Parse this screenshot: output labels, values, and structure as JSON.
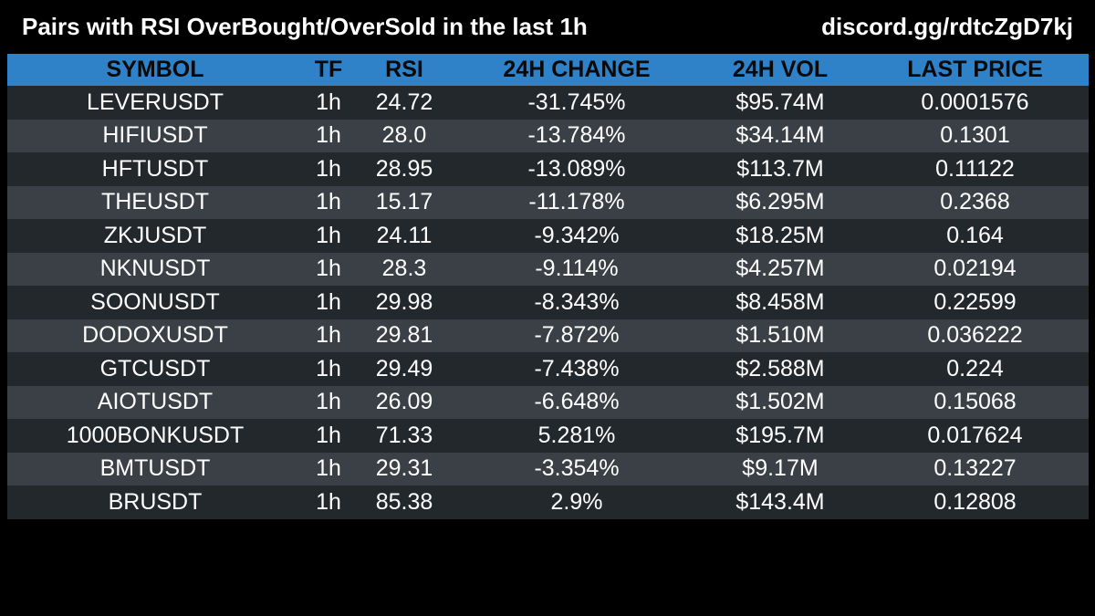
{
  "header": {
    "title": "Pairs with RSI OverBought/OverSold in the last 1h",
    "link": "discord.gg/rdtcZgD7kj"
  },
  "colors": {
    "background": "#000000",
    "header_row": "#2f82c8",
    "row_dark": "#23282d",
    "row_light": "#3a4046",
    "text": "#ffffff",
    "header_text": "#0a0a0a"
  },
  "table": {
    "columns": [
      "SYMBOL",
      "TF",
      "RSI",
      "24H CHANGE",
      "24H VOL",
      "LAST PRICE"
    ],
    "rows": [
      [
        "LEVERUSDT",
        "1h",
        "24.72",
        "-31.745%",
        "$95.74M",
        "0.0001576"
      ],
      [
        "HIFIUSDT",
        "1h",
        "28.0",
        "-13.784%",
        "$34.14M",
        "0.1301"
      ],
      [
        "HFTUSDT",
        "1h",
        "28.95",
        "-13.089%",
        "$113.7M",
        "0.11122"
      ],
      [
        "THEUSDT",
        "1h",
        "15.17",
        "-11.178%",
        "$6.295M",
        "0.2368"
      ],
      [
        "ZKJUSDT",
        "1h",
        "24.11",
        "-9.342%",
        "$18.25M",
        "0.164"
      ],
      [
        "NKNUSDT",
        "1h",
        "28.3",
        "-9.114%",
        "$4.257M",
        "0.02194"
      ],
      [
        "SOONUSDT",
        "1h",
        "29.98",
        "-8.343%",
        "$8.458M",
        "0.22599"
      ],
      [
        "DODOXUSDT",
        "1h",
        "29.81",
        "-7.872%",
        "$1.510M",
        "0.036222"
      ],
      [
        "GTCUSDT",
        "1h",
        "29.49",
        "-7.438%",
        "$2.588M",
        "0.224"
      ],
      [
        "AIOTUSDT",
        "1h",
        "26.09",
        "-6.648%",
        "$1.502M",
        "0.15068"
      ],
      [
        "1000BONKUSDT",
        "1h",
        "71.33",
        "5.281%",
        "$195.7M",
        "0.017624"
      ],
      [
        "BMTUSDT",
        "1h",
        "29.31",
        "-3.354%",
        "$9.17M",
        "0.13227"
      ],
      [
        "BRUSDT",
        "1h",
        "85.38",
        "2.9%",
        "$143.4M",
        "0.12808"
      ]
    ]
  }
}
